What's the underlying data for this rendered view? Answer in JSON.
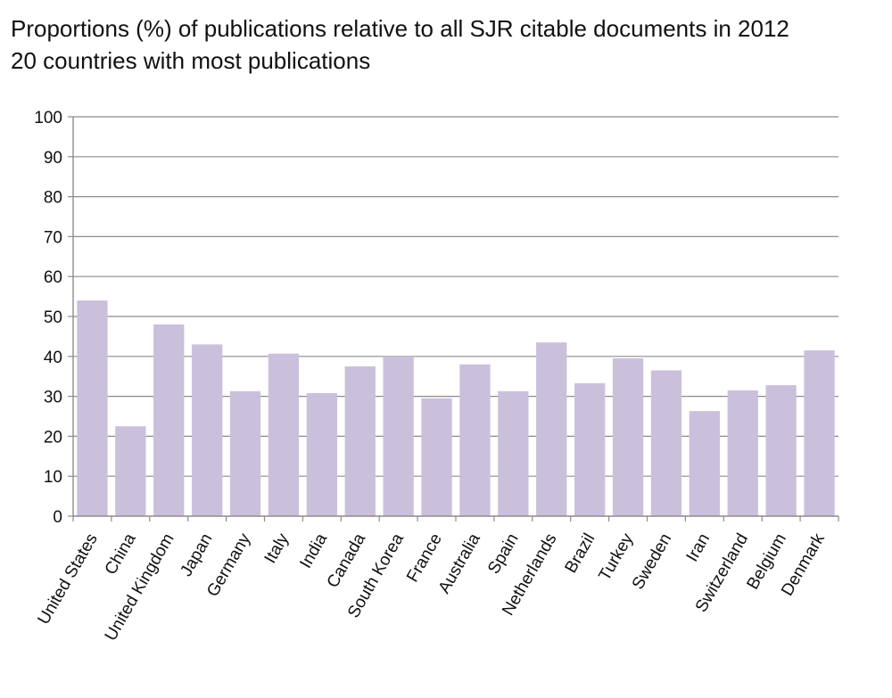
{
  "chart_data": {
    "type": "bar",
    "title": "Proportions (%) of publications relative to all SJR citable documents in 2012",
    "subtitle": "20 countries with most publications",
    "xlabel": "",
    "ylabel": "",
    "ylim": [
      0,
      100
    ],
    "yticks": [
      "0",
      "10",
      "20",
      "30",
      "40",
      "50",
      "60",
      "70",
      "80",
      "90",
      "100"
    ],
    "grid": true,
    "bar_color": "#cbc0dc",
    "categories": [
      "United States",
      "China",
      "United Kingdom",
      "Japan",
      "Germany",
      "Italy",
      "India",
      "Canada",
      "South Korea",
      "France",
      "Australia",
      "Spain",
      "Netherlands",
      "Brazil",
      "Turkey",
      "Sweden",
      "Iran",
      "Switzerland",
      "Belgium",
      "Denmark"
    ],
    "values": [
      54,
      22.5,
      48,
      43,
      31.3,
      40.7,
      30.8,
      37.5,
      40,
      29.5,
      38,
      31.3,
      43.5,
      33.3,
      39.5,
      36.5,
      26.3,
      31.5,
      32.8,
      41.5
    ]
  }
}
